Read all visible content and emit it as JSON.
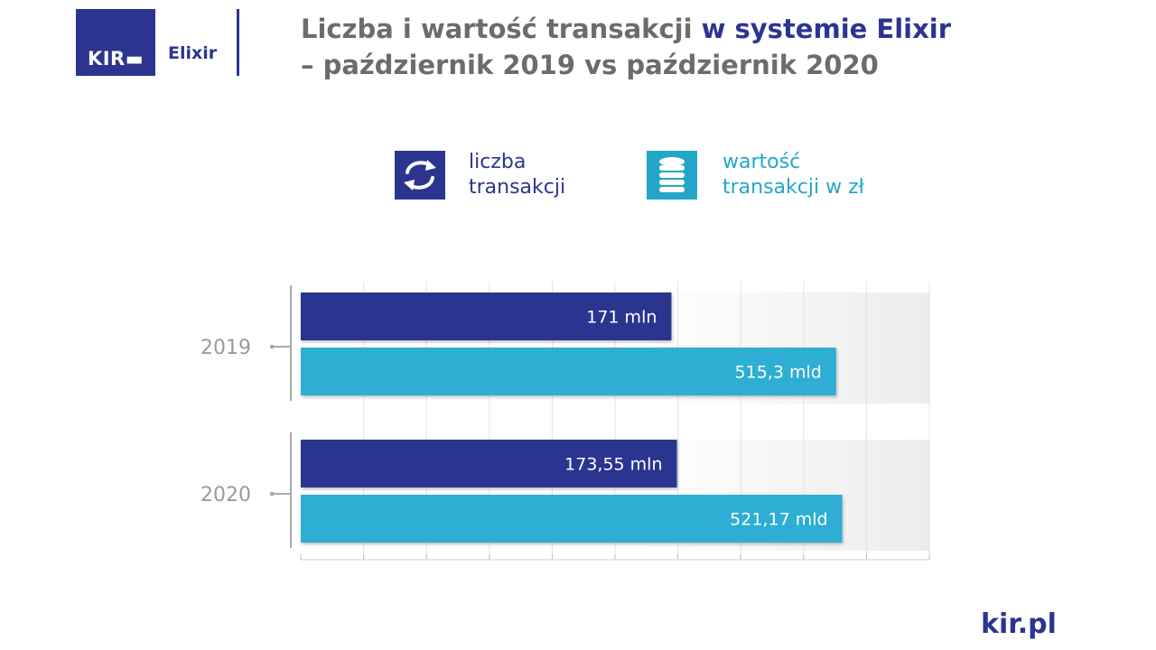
{
  "header": {
    "logo_text": "KIR",
    "logo_sub": "Elixir",
    "title_part1": "Liczba i wartość transakcji",
    "title_part2": "w systemie Elixir",
    "title_line2": "– październik 2019 vs październik 2020"
  },
  "legend": {
    "items": [
      {
        "line1": "liczba",
        "line2": "transakcji",
        "icon": "exchange-arrows-icon",
        "color": "#2b3590"
      },
      {
        "line1": "wartość",
        "line2": "transakcji w zł",
        "icon": "coins-stack-icon",
        "color": "#22a7c8"
      }
    ]
  },
  "chart_data": {
    "type": "bar",
    "orientation": "horizontal",
    "categories": [
      "2019",
      "2020"
    ],
    "series": [
      {
        "name": "liczba transakcji",
        "values": [
          171,
          173.55
        ],
        "labels": [
          "171 mln",
          "173,55 mln"
        ],
        "color": "#2b3590"
      },
      {
        "name": "wartość transakcji w zł",
        "values": [
          515.3,
          521.17
        ],
        "labels": [
          "515,3 mld",
          "521,17 mld"
        ],
        "color": "#2eaed3"
      }
    ],
    "title": "",
    "xlabel": "",
    "ylabel": "",
    "grid": true,
    "legend_position": "top"
  },
  "footer": {
    "brand": "kir.pl"
  }
}
